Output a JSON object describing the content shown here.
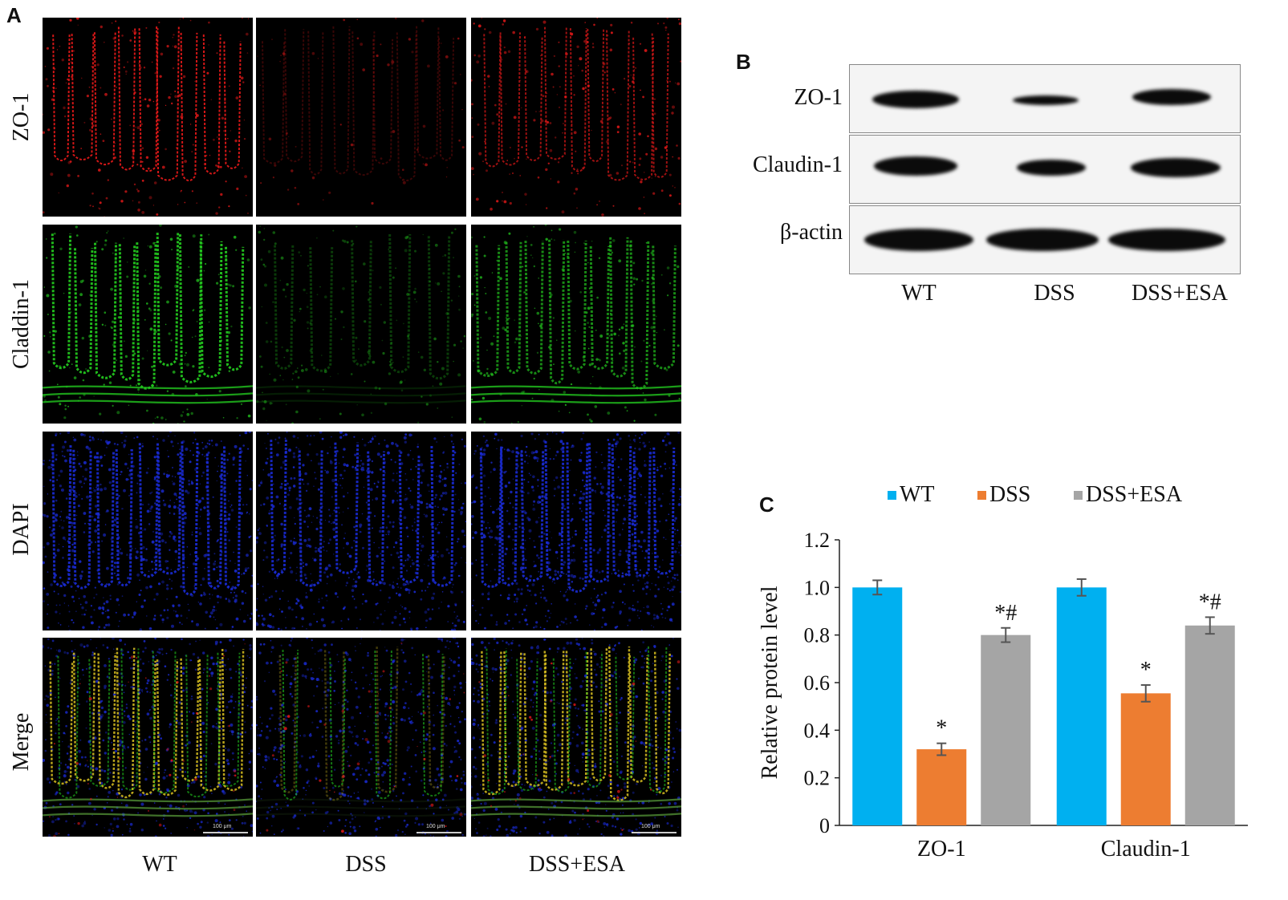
{
  "panels": {
    "a": "A",
    "b": "B",
    "c": "C"
  },
  "micrographs": {
    "rows": [
      "ZO-1",
      "Claddin-1",
      "DAPI",
      "Merge"
    ],
    "columns": [
      "WT",
      "DSS",
      "DSS+ESA"
    ],
    "scale_bar": "100 μm",
    "colors": {
      "ZO-1": "#e01818",
      "Claddin-1": "#22c41e",
      "DAPI": "#1a2bd6"
    }
  },
  "western_blot": {
    "proteins": [
      "ZO-1",
      "Claudin-1",
      "β-actin"
    ],
    "lanes": [
      "WT",
      "DSS",
      "DSS+ESA"
    ]
  },
  "chart_data": {
    "type": "bar",
    "categories": [
      "ZO-1",
      "Claudin-1"
    ],
    "series": [
      {
        "name": "WT",
        "values": [
          1.0,
          1.0
        ],
        "errors": [
          0.03,
          0.035
        ],
        "color": "#00b0f0",
        "annotations": [
          "",
          ""
        ]
      },
      {
        "name": "DSS",
        "values": [
          0.32,
          0.555
        ],
        "errors": [
          0.025,
          0.035
        ],
        "color": "#ed7d31",
        "annotations": [
          "*",
          "*"
        ]
      },
      {
        "name": "DSS+ESA",
        "values": [
          0.8,
          0.84
        ],
        "errors": [
          0.03,
          0.035
        ],
        "color": "#a5a5a5",
        "annotations": [
          "*#",
          "*#"
        ]
      }
    ],
    "ylabel": "Relative protein level",
    "xlabel": "",
    "ylim": [
      0,
      1.2
    ],
    "yticks": [
      "0",
      "0.2",
      "0.4",
      "0.6",
      "0.8",
      "1.0",
      "1.2"
    ],
    "legend": "top",
    "grid": false
  }
}
